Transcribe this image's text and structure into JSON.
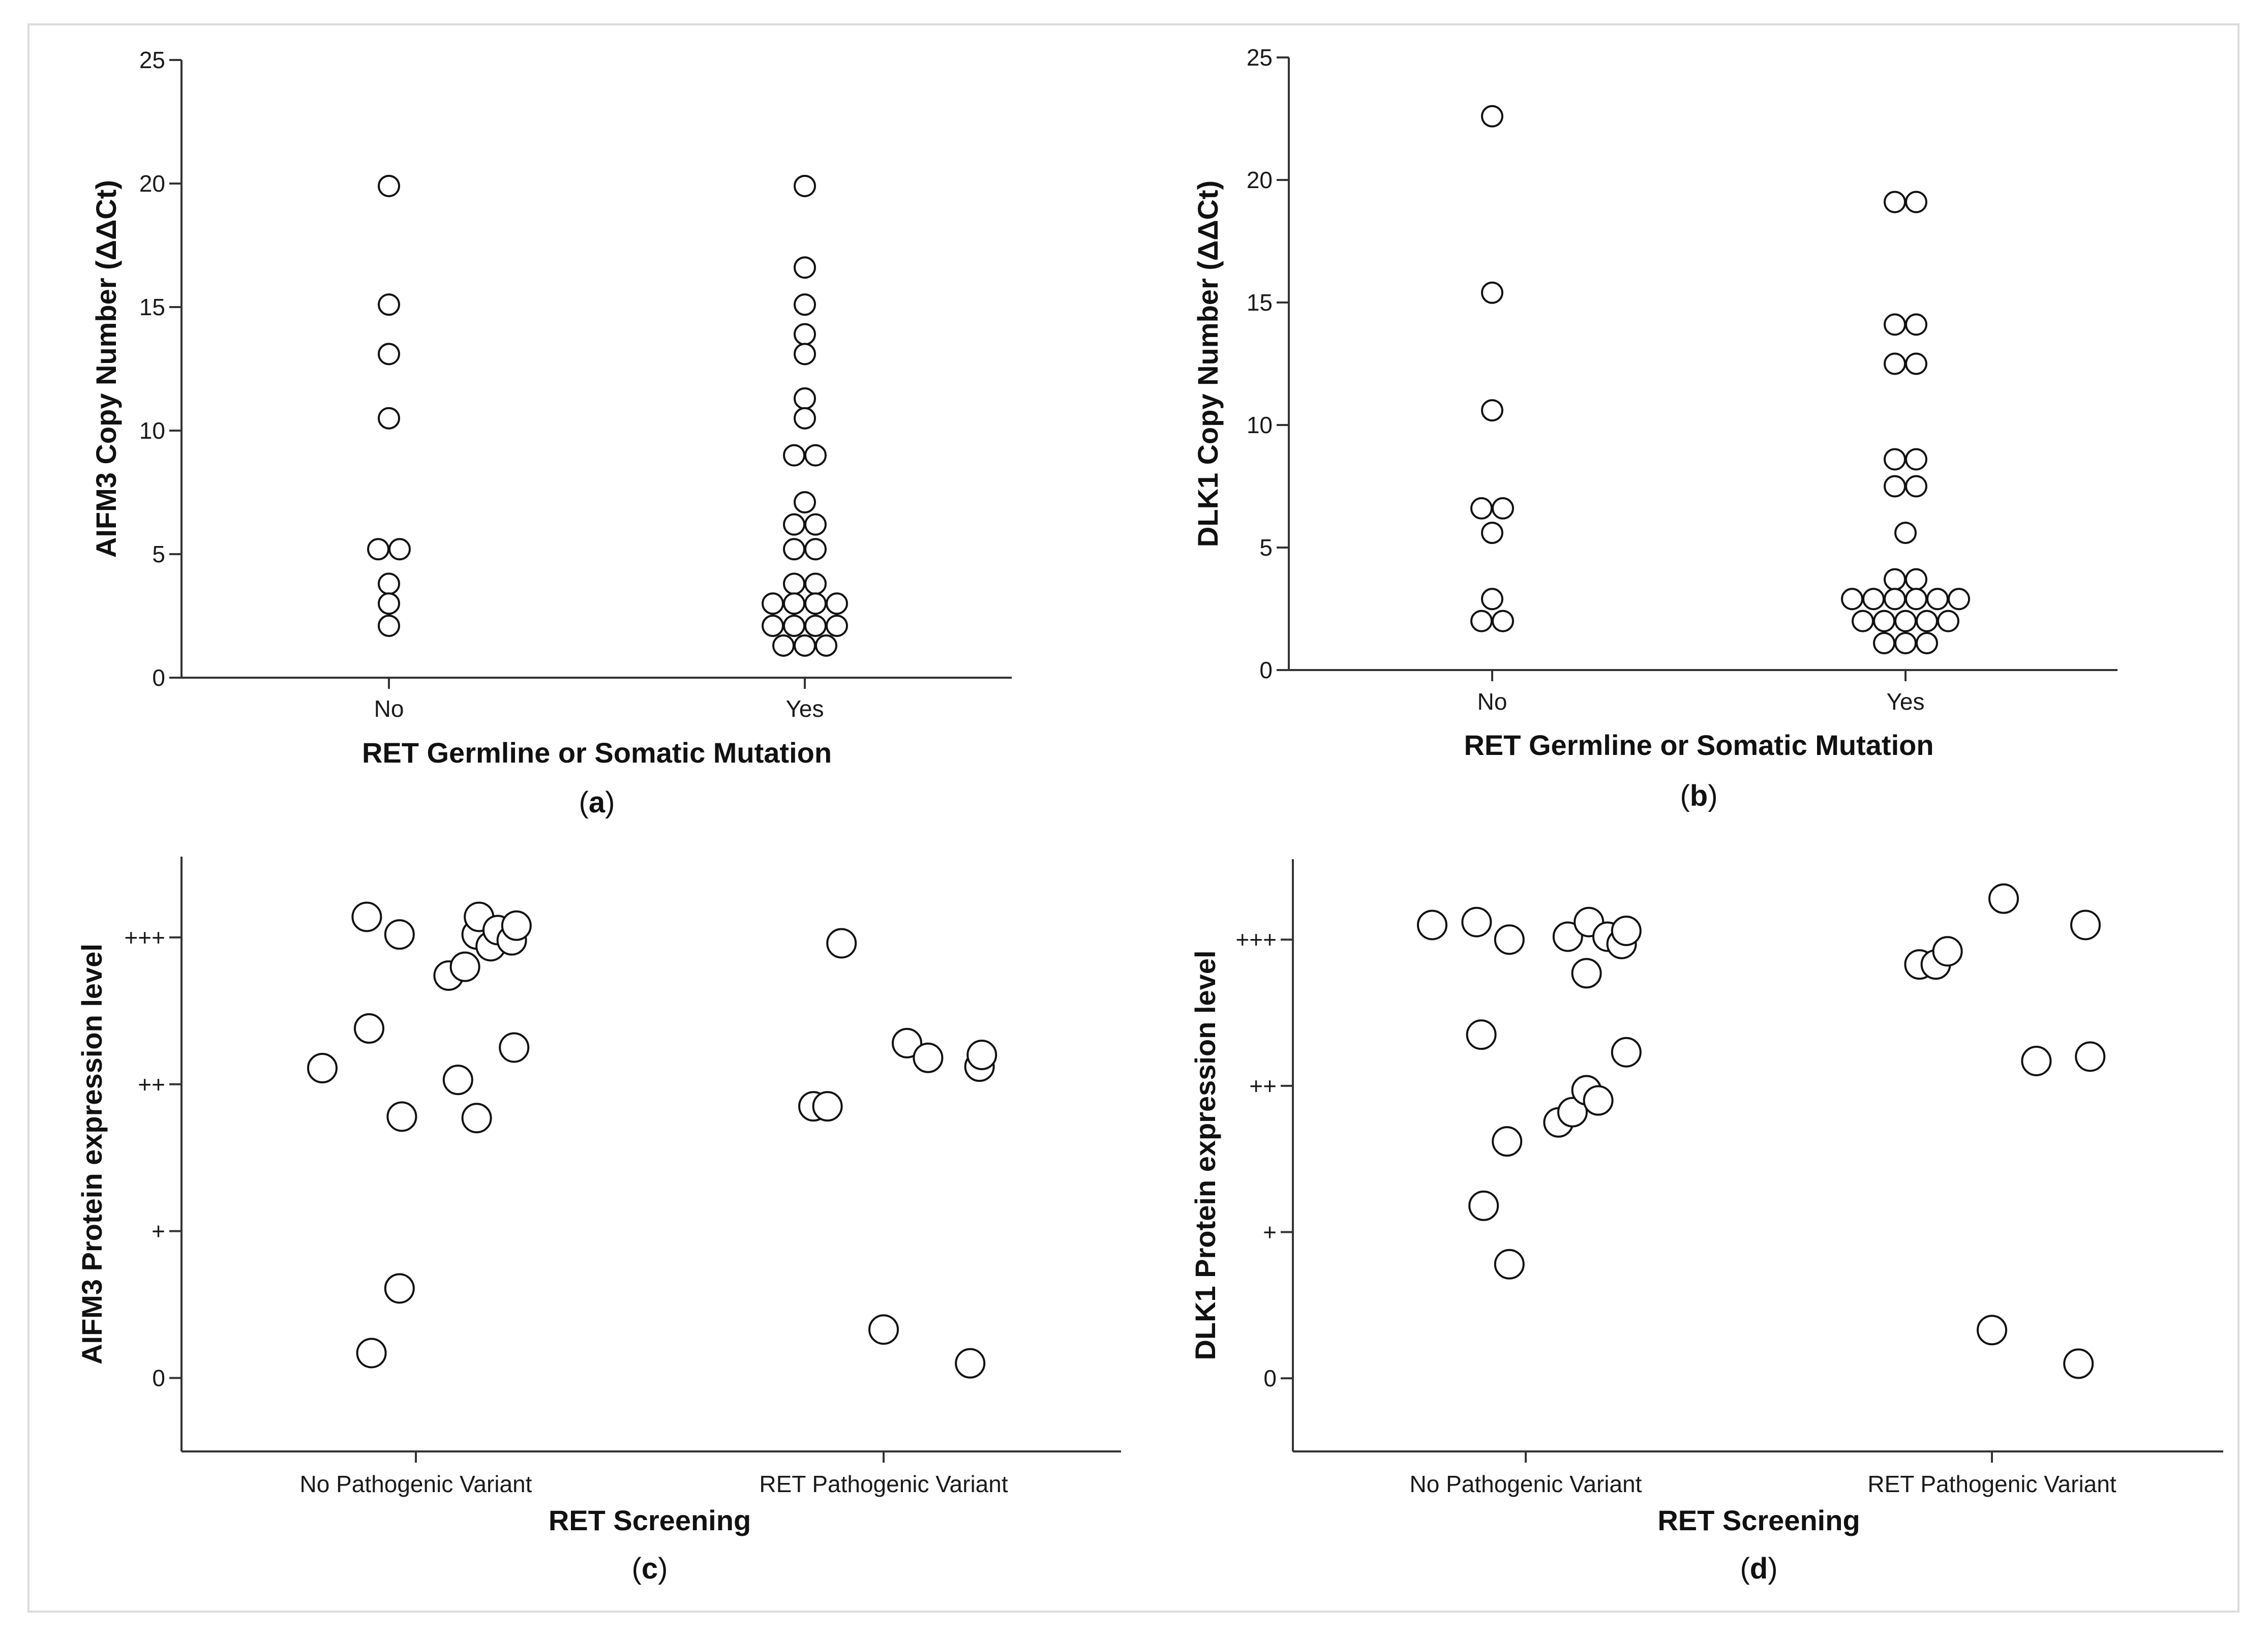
{
  "chart_data": [
    {
      "id": "a",
      "type": "scatter",
      "panel_label": "a",
      "ylabel": "AIFM3 Copy Number (ΔΔCt)",
      "xlabel": "RET Germline or Somatic Mutation",
      "categories": [
        "No",
        "Yes"
      ],
      "ylim": [
        0,
        25
      ],
      "yticks": [
        0,
        5,
        10,
        15,
        20,
        25
      ],
      "ytick_labels": [
        "0",
        "5",
        "10",
        "15",
        "20",
        "25"
      ],
      "points": [
        {
          "cat": 0,
          "off": 0,
          "y": 19.9
        },
        {
          "cat": 0,
          "off": 0,
          "y": 15.1
        },
        {
          "cat": 0,
          "off": 0,
          "y": 13.1
        },
        {
          "cat": 0,
          "off": 0,
          "y": 10.5
        },
        {
          "cat": 0,
          "off": -0.5,
          "y": 5.2
        },
        {
          "cat": 0,
          "off": 0.5,
          "y": 5.2
        },
        {
          "cat": 0,
          "off": 0,
          "y": 3.8
        },
        {
          "cat": 0,
          "off": 0,
          "y": 3.0
        },
        {
          "cat": 0,
          "off": 0,
          "y": 2.1
        },
        {
          "cat": 1,
          "off": 0,
          "y": 19.9
        },
        {
          "cat": 1,
          "off": 0,
          "y": 16.6
        },
        {
          "cat": 1,
          "off": 0,
          "y": 15.1
        },
        {
          "cat": 1,
          "off": 0,
          "y": 13.9
        },
        {
          "cat": 1,
          "off": 0,
          "y": 13.1
        },
        {
          "cat": 1,
          "off": 0,
          "y": 11.3
        },
        {
          "cat": 1,
          "off": 0,
          "y": 10.5
        },
        {
          "cat": 1,
          "off": -0.5,
          "y": 9.0
        },
        {
          "cat": 1,
          "off": 0.5,
          "y": 9.0
        },
        {
          "cat": 1,
          "off": 0,
          "y": 7.1
        },
        {
          "cat": 1,
          "off": -0.5,
          "y": 6.2
        },
        {
          "cat": 1,
          "off": 0.5,
          "y": 6.2
        },
        {
          "cat": 1,
          "off": -0.5,
          "y": 5.2
        },
        {
          "cat": 1,
          "off": 0.5,
          "y": 5.2
        },
        {
          "cat": 1,
          "off": -0.5,
          "y": 3.8
        },
        {
          "cat": 1,
          "off": 0.5,
          "y": 3.8
        },
        {
          "cat": 1,
          "off": -1.5,
          "y": 3.0
        },
        {
          "cat": 1,
          "off": -0.5,
          "y": 3.0
        },
        {
          "cat": 1,
          "off": 0.5,
          "y": 3.0
        },
        {
          "cat": 1,
          "off": 1.5,
          "y": 3.0
        },
        {
          "cat": 1,
          "off": -1.5,
          "y": 2.1
        },
        {
          "cat": 1,
          "off": -0.5,
          "y": 2.1
        },
        {
          "cat": 1,
          "off": 0.5,
          "y": 2.1
        },
        {
          "cat": 1,
          "off": 1.5,
          "y": 2.1
        },
        {
          "cat": 1,
          "off": -1,
          "y": 1.3
        },
        {
          "cat": 1,
          "off": 0,
          "y": 1.3
        },
        {
          "cat": 1,
          "off": 1,
          "y": 1.3
        }
      ]
    },
    {
      "id": "b",
      "type": "scatter",
      "panel_label": "b",
      "ylabel": "DLK1 Copy Number (ΔΔCt)",
      "xlabel": "RET Germline or Somatic Mutation",
      "categories": [
        "No",
        "Yes"
      ],
      "ylim": [
        0,
        25
      ],
      "yticks": [
        0,
        5,
        10,
        15,
        20,
        25
      ],
      "ytick_labels": [
        "0",
        "5",
        "10",
        "15",
        "20",
        "25"
      ],
      "points": [
        {
          "cat": 0,
          "off": 0,
          "y": 22.6
        },
        {
          "cat": 0,
          "off": 0,
          "y": 15.4
        },
        {
          "cat": 0,
          "off": 0,
          "y": 10.6
        },
        {
          "cat": 0,
          "off": -0.5,
          "y": 6.6
        },
        {
          "cat": 0,
          "off": 0.5,
          "y": 6.6
        },
        {
          "cat": 0,
          "off": 0,
          "y": 5.6
        },
        {
          "cat": 0,
          "off": 0,
          "y": 2.9
        },
        {
          "cat": 0,
          "off": -0.5,
          "y": 2.0
        },
        {
          "cat": 0,
          "off": 0.5,
          "y": 2.0
        },
        {
          "cat": 1,
          "off": -0.5,
          "y": 19.1
        },
        {
          "cat": 1,
          "off": 0.5,
          "y": 19.1
        },
        {
          "cat": 1,
          "off": -0.5,
          "y": 14.1
        },
        {
          "cat": 1,
          "off": 0.5,
          "y": 14.1
        },
        {
          "cat": 1,
          "off": -0.5,
          "y": 12.5
        },
        {
          "cat": 1,
          "off": 0.5,
          "y": 12.5
        },
        {
          "cat": 1,
          "off": -0.5,
          "y": 8.6
        },
        {
          "cat": 1,
          "off": 0.5,
          "y": 8.6
        },
        {
          "cat": 1,
          "off": -0.5,
          "y": 7.5
        },
        {
          "cat": 1,
          "off": 0.5,
          "y": 7.5
        },
        {
          "cat": 1,
          "off": 0,
          "y": 5.6
        },
        {
          "cat": 1,
          "off": -0.5,
          "y": 3.7
        },
        {
          "cat": 1,
          "off": 0.5,
          "y": 3.7
        },
        {
          "cat": 1,
          "off": -2.5,
          "y": 2.9
        },
        {
          "cat": 1,
          "off": -1.5,
          "y": 2.9
        },
        {
          "cat": 1,
          "off": -0.5,
          "y": 2.9
        },
        {
          "cat": 1,
          "off": 0.5,
          "y": 2.9
        },
        {
          "cat": 1,
          "off": 1.5,
          "y": 2.9
        },
        {
          "cat": 1,
          "off": 2.5,
          "y": 2.9
        },
        {
          "cat": 1,
          "off": -2,
          "y": 2.0
        },
        {
          "cat": 1,
          "off": -1,
          "y": 2.0
        },
        {
          "cat": 1,
          "off": 0,
          "y": 2.0
        },
        {
          "cat": 1,
          "off": 1,
          "y": 2.0
        },
        {
          "cat": 1,
          "off": 2,
          "y": 2.0
        },
        {
          "cat": 1,
          "off": -1,
          "y": 1.1
        },
        {
          "cat": 1,
          "off": 0,
          "y": 1.1
        },
        {
          "cat": 1,
          "off": 1,
          "y": 1.1
        }
      ]
    },
    {
      "id": "c",
      "type": "scatter",
      "panel_label": "c",
      "ylabel": "AIFM3 Protein expression level",
      "xlabel": "RET Screening",
      "categories": [
        "No Pathogenic Variant",
        "RET Pathogenic Variant"
      ],
      "ylim": [
        -0.5,
        3.55
      ],
      "yticks": [
        0,
        1,
        2,
        3
      ],
      "ytick_labels": [
        "0",
        "+",
        "++",
        "+++"
      ],
      "points": [
        {
          "cat": 0,
          "xj": -0.4,
          "y": 2.11
        },
        {
          "cat": 0,
          "xj": -0.21,
          "y": 3.14
        },
        {
          "cat": 0,
          "xj": -0.2,
          "y": 2.38
        },
        {
          "cat": 0,
          "xj": -0.19,
          "y": 0.17
        },
        {
          "cat": 0,
          "xj": -0.07,
          "y": 3.02
        },
        {
          "cat": 0,
          "xj": -0.06,
          "y": 1.78
        },
        {
          "cat": 0,
          "xj": -0.07,
          "y": 0.61
        },
        {
          "cat": 0,
          "xj": 0.14,
          "y": 2.74
        },
        {
          "cat": 0,
          "xj": 0.18,
          "y": 2.03
        },
        {
          "cat": 0,
          "xj": 0.21,
          "y": 2.8
        },
        {
          "cat": 0,
          "xj": 0.26,
          "y": 3.02
        },
        {
          "cat": 0,
          "xj": 0.27,
          "y": 3.14
        },
        {
          "cat": 0,
          "xj": 0.32,
          "y": 2.94
        },
        {
          "cat": 0,
          "xj": 0.35,
          "y": 3.05
        },
        {
          "cat": 0,
          "xj": 0.41,
          "y": 2.98
        },
        {
          "cat": 0,
          "xj": 0.43,
          "y": 3.08
        },
        {
          "cat": 0,
          "xj": 0.42,
          "y": 2.25
        },
        {
          "cat": 0,
          "xj": 0.26,
          "y": 1.77
        },
        {
          "cat": 1,
          "xj": -0.3,
          "y": 1.85
        },
        {
          "cat": 1,
          "xj": -0.24,
          "y": 1.85
        },
        {
          "cat": 1,
          "xj": -0.18,
          "y": 2.96
        },
        {
          "cat": 1,
          "xj": 0.0,
          "y": 0.33
        },
        {
          "cat": 1,
          "xj": 0.1,
          "y": 2.28
        },
        {
          "cat": 1,
          "xj": 0.19,
          "y": 2.18
        },
        {
          "cat": 1,
          "xj": 0.37,
          "y": 0.1
        },
        {
          "cat": 1,
          "xj": 0.41,
          "y": 2.12
        },
        {
          "cat": 1,
          "xj": 0.42,
          "y": 2.2
        }
      ]
    },
    {
      "id": "d",
      "type": "scatter",
      "panel_label": "d",
      "ylabel": "DLK1 Protein expression level",
      "xlabel": "RET Screening",
      "categories": [
        "No Pathogenic Variant",
        "RET Pathogenic Variant"
      ],
      "ylim": [
        -0.5,
        3.55
      ],
      "yticks": [
        0,
        1,
        2,
        3
      ],
      "ytick_labels": [
        "0",
        "+",
        "++",
        "+++"
      ],
      "points": [
        {
          "cat": 0,
          "xj": -0.4,
          "y": 3.1
        },
        {
          "cat": 0,
          "xj": -0.21,
          "y": 3.12
        },
        {
          "cat": 0,
          "xj": -0.19,
          "y": 2.35
        },
        {
          "cat": 0,
          "xj": -0.18,
          "y": 1.18
        },
        {
          "cat": 0,
          "xj": -0.07,
          "y": 3.0
        },
        {
          "cat": 0,
          "xj": -0.08,
          "y": 1.62
        },
        {
          "cat": 0,
          "xj": -0.07,
          "y": 0.78
        },
        {
          "cat": 0,
          "xj": 0.14,
          "y": 1.75
        },
        {
          "cat": 0,
          "xj": 0.2,
          "y": 1.82
        },
        {
          "cat": 0,
          "xj": 0.18,
          "y": 3.02
        },
        {
          "cat": 0,
          "xj": 0.26,
          "y": 1.97
        },
        {
          "cat": 0,
          "xj": 0.26,
          "y": 2.77
        },
        {
          "cat": 0,
          "xj": 0.27,
          "y": 3.12
        },
        {
          "cat": 0,
          "xj": 0.31,
          "y": 1.9
        },
        {
          "cat": 0,
          "xj": 0.35,
          "y": 3.02
        },
        {
          "cat": 0,
          "xj": 0.41,
          "y": 2.97
        },
        {
          "cat": 0,
          "xj": 0.43,
          "y": 3.06
        },
        {
          "cat": 0,
          "xj": 0.43,
          "y": 2.23
        },
        {
          "cat": 1,
          "xj": -0.31,
          "y": 2.83
        },
        {
          "cat": 1,
          "xj": -0.24,
          "y": 2.83
        },
        {
          "cat": 1,
          "xj": -0.19,
          "y": 2.92
        },
        {
          "cat": 1,
          "xj": 0.0,
          "y": 0.33
        },
        {
          "cat": 1,
          "xj": 0.05,
          "y": 3.28
        },
        {
          "cat": 1,
          "xj": 0.19,
          "y": 2.17
        },
        {
          "cat": 1,
          "xj": 0.37,
          "y": 0.1
        },
        {
          "cat": 1,
          "xj": 0.4,
          "y": 3.1
        },
        {
          "cat": 1,
          "xj": 0.42,
          "y": 2.2
        }
      ]
    }
  ]
}
